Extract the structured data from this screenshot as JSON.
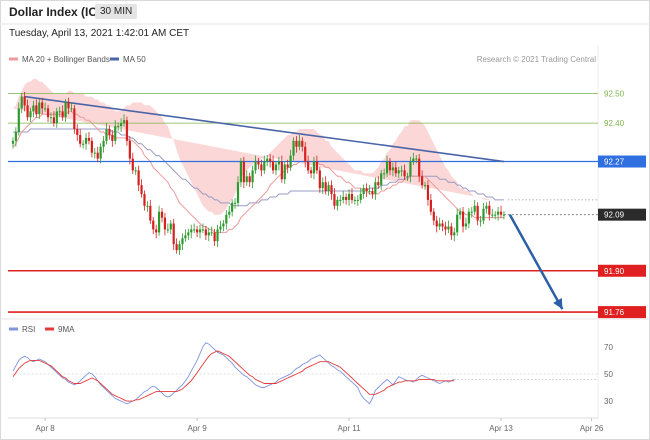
{
  "header": {
    "title": "Dollar Index (ICE)",
    "interval": "30 MIN",
    "datetime": "Tuesday, April 13, 2021 1:42:01 AM CET",
    "credit": "Research © 2021 Trading Central"
  },
  "colors": {
    "resistance": "#7bb34a",
    "pivot": "#2f6fe0",
    "support": "#e02020",
    "bands_fill": "#fbd7d7",
    "ma20": "#ee9a9a",
    "ma50": "#9a9ac4",
    "trendline": "#4a64a8",
    "candle_up": "#2e9a2e",
    "candle_down": "#d61f1f",
    "rsi": "#7f95dc",
    "rsi_ma": "#e23a3a"
  },
  "chart_data": [
    {
      "type": "candlestick",
      "legend": [
        {
          "name": "MA 20 + Bollinger Bands",
          "color": "#ee9a9a"
        },
        {
          "name": "MA 50",
          "color": "#4a64a8"
        }
      ],
      "ylim": [
        91.74,
        92.58
      ],
      "levels": [
        {
          "value": 92.5,
          "label": "92.50",
          "kind": "resistance"
        },
        {
          "value": 92.4,
          "label": "92.40",
          "kind": "resistance"
        },
        {
          "value": 92.27,
          "label": "92.27",
          "kind": "pivot"
        },
        {
          "value": 91.9,
          "label": "91.90",
          "kind": "support"
        },
        {
          "value": 91.76,
          "label": "91.76",
          "kind": "support"
        }
      ],
      "last_price": {
        "value": 92.09,
        "label": "92.09"
      },
      "x_ticks": [
        {
          "i": 11,
          "label": "Apr 8"
        },
        {
          "i": 63,
          "label": "Apr 9"
        },
        {
          "i": 115,
          "label": "Apr 11"
        },
        {
          "i": 167,
          "label": "Apr 13"
        },
        {
          "i": 198,
          "label": "Apr 26"
        }
      ],
      "n_slots": 200,
      "closes": [
        92.34,
        92.37,
        92.45,
        92.49,
        92.46,
        92.42,
        92.44,
        92.46,
        92.43,
        92.47,
        92.45,
        92.45,
        92.42,
        92.42,
        92.4,
        92.44,
        92.44,
        92.42,
        92.47,
        92.45,
        92.45,
        92.38,
        92.36,
        92.33,
        92.33,
        92.35,
        92.34,
        92.3,
        92.3,
        92.28,
        92.32,
        92.34,
        92.38,
        92.36,
        92.34,
        92.39,
        92.39,
        92.4,
        92.41,
        92.34,
        92.28,
        92.24,
        92.24,
        92.19,
        92.16,
        92.12,
        92.12,
        92.07,
        92.04,
        92.03,
        92.1,
        92.08,
        92.04,
        92.04,
        92.06,
        91.99,
        91.97,
        91.99,
        92.01,
        92.02,
        92.03,
        92.04,
        92.04,
        92.03,
        92.04,
        92.04,
        92.02,
        92.03,
        92.03,
        92.0,
        92.04,
        92.05,
        92.06,
        92.09,
        92.1,
        92.13,
        92.13,
        92.2,
        92.27,
        92.2,
        92.22,
        92.2,
        92.24,
        92.27,
        92.26,
        92.24,
        92.27,
        92.28,
        92.27,
        92.24,
        92.26,
        92.27,
        92.21,
        92.26,
        92.25,
        92.29,
        92.34,
        92.32,
        92.34,
        92.32,
        92.27,
        92.24,
        92.23,
        92.27,
        92.24,
        92.18,
        92.2,
        92.17,
        92.19,
        92.16,
        92.12,
        92.14,
        92.14,
        92.15,
        92.14,
        92.16,
        92.14,
        92.14,
        92.14,
        92.16,
        92.18,
        92.17,
        92.17,
        92.16,
        92.2,
        92.19,
        92.23,
        92.23,
        92.27,
        92.24,
        92.25,
        92.23,
        92.24,
        92.24,
        92.22,
        92.22,
        92.27,
        92.28,
        92.28,
        92.22,
        92.19,
        92.19,
        92.14,
        92.1,
        92.07,
        92.05,
        92.06,
        92.05,
        92.04,
        92.05,
        92.02,
        92.03,
        92.09,
        92.1,
        92.05,
        92.06,
        92.1,
        92.1,
        92.12,
        92.07,
        92.07,
        92.11,
        92.12,
        92.09,
        92.09,
        92.09,
        92.1,
        92.09,
        92.09
      ],
      "ma20": [
        92.32,
        92.33,
        92.35,
        92.37,
        92.38,
        92.39,
        92.4,
        92.41,
        92.42,
        92.42,
        92.43,
        92.43,
        92.43,
        92.43,
        92.43,
        92.43,
        92.43,
        92.43,
        92.43,
        92.44,
        92.44,
        92.43,
        92.43,
        92.42,
        92.42,
        92.41,
        92.41,
        92.4,
        92.39,
        92.38,
        92.37,
        92.37,
        92.36,
        92.36,
        92.36,
        92.35,
        92.35,
        92.35,
        92.35,
        92.35,
        92.34,
        92.34,
        92.33,
        92.32,
        92.31,
        92.29,
        92.28,
        92.27,
        92.25,
        92.24,
        92.23,
        92.22,
        92.21,
        92.2,
        92.18,
        92.17,
        92.15,
        92.13,
        92.12,
        92.11,
        92.1,
        92.09,
        92.08,
        92.07,
        92.06,
        92.05,
        92.05,
        92.04,
        92.04,
        92.03,
        92.03,
        92.03,
        92.03,
        92.03,
        92.04,
        92.04,
        92.05,
        92.06,
        92.08,
        92.09,
        92.1,
        92.11,
        92.12,
        92.13,
        92.14,
        92.15,
        92.16,
        92.17,
        92.19,
        92.2,
        92.21,
        92.22,
        92.23,
        92.24,
        92.25,
        92.25,
        92.26,
        92.26,
        92.27,
        92.27,
        92.27,
        92.27,
        92.27,
        92.27,
        92.27,
        92.26,
        92.26,
        92.25,
        92.25,
        92.24,
        92.23,
        92.22,
        92.22,
        92.21,
        92.2,
        92.2,
        92.19,
        92.18,
        92.18,
        92.18,
        92.17,
        92.17,
        92.16,
        92.16,
        92.16,
        92.16,
        92.17,
        92.17,
        92.18,
        92.18,
        92.19,
        92.19,
        92.2,
        92.2,
        92.21,
        92.21,
        92.22,
        92.22,
        92.22,
        92.22,
        92.22,
        92.22,
        92.21,
        92.2,
        92.19,
        92.18,
        92.17,
        92.16,
        92.15,
        92.14,
        92.13,
        92.12,
        92.11,
        92.1,
        92.1,
        92.09,
        92.09,
        92.09,
        92.08,
        92.08,
        92.08,
        92.08,
        92.08,
        92.08,
        92.08,
        92.08,
        92.08,
        92.08,
        92.08
      ],
      "ma50": [
        92.37,
        92.37,
        92.37,
        92.37,
        92.37,
        92.37,
        92.38,
        92.38,
        92.38,
        92.38,
        92.38,
        92.38,
        92.38,
        92.38,
        92.38,
        92.38,
        92.38,
        92.38,
        92.38,
        92.38,
        92.38,
        92.38,
        92.38,
        92.38,
        92.38,
        92.38,
        92.38,
        92.38,
        92.38,
        92.38,
        92.38,
        92.38,
        92.38,
        92.38,
        92.37,
        92.37,
        92.37,
        92.36,
        92.36,
        92.36,
        92.35,
        92.35,
        92.34,
        92.33,
        92.33,
        92.32,
        92.31,
        92.31,
        92.3,
        92.29,
        92.29,
        92.28,
        92.27,
        92.26,
        92.25,
        92.24,
        92.23,
        92.22,
        92.21,
        92.21,
        92.2,
        92.19,
        92.18,
        92.18,
        92.17,
        92.16,
        92.16,
        92.15,
        92.15,
        92.14,
        92.14,
        92.13,
        92.13,
        92.13,
        92.13,
        92.12,
        92.12,
        92.12,
        92.12,
        92.12,
        92.12,
        92.13,
        92.13,
        92.13,
        92.13,
        92.14,
        92.14,
        92.14,
        92.15,
        92.15,
        92.15,
        92.16,
        92.16,
        92.16,
        92.16,
        92.17,
        92.17,
        92.17,
        92.17,
        92.17,
        92.17,
        92.17,
        92.17,
        92.17,
        92.17,
        92.17,
        92.17,
        92.17,
        92.17,
        92.17,
        92.17,
        92.17,
        92.17,
        92.17,
        92.17,
        92.17,
        92.17,
        92.17,
        92.17,
        92.17,
        92.17,
        92.17,
        92.18,
        92.18,
        92.18,
        92.18,
        92.19,
        92.19,
        92.19,
        92.2,
        92.2,
        92.2,
        92.21,
        92.21,
        92.21,
        92.22,
        92.22,
        92.22,
        92.22,
        92.22,
        92.22,
        92.22,
        92.22,
        92.22,
        92.22,
        92.22,
        92.21,
        92.21,
        92.21,
        92.2,
        92.2,
        92.2,
        92.19,
        92.19,
        92.18,
        92.18,
        92.17,
        92.17,
        92.17,
        92.16,
        92.16,
        92.16,
        92.15,
        92.15,
        92.15,
        92.14,
        92.14,
        92.14,
        92.14
      ],
      "bb_width": [
        0.13,
        0.13,
        0.14,
        0.14,
        0.15,
        0.15,
        0.14,
        0.14,
        0.13,
        0.12,
        0.11,
        0.1,
        0.09,
        0.08,
        0.07,
        0.07,
        0.07,
        0.07,
        0.07,
        0.07,
        0.07,
        0.07,
        0.07,
        0.08,
        0.08,
        0.08,
        0.08,
        0.09,
        0.09,
        0.1,
        0.1,
        0.1,
        0.1,
        0.1,
        0.09,
        0.09,
        0.09,
        0.09,
        0.1,
        0.11,
        0.12,
        0.13,
        0.14,
        0.15,
        0.16,
        0.17,
        0.18,
        0.19,
        0.2,
        0.2,
        0.2,
        0.2,
        0.19,
        0.19,
        0.18,
        0.17,
        0.16,
        0.15,
        0.14,
        0.13,
        0.12,
        0.11,
        0.1,
        0.09,
        0.08,
        0.07,
        0.06,
        0.06,
        0.06,
        0.06,
        0.06,
        0.06,
        0.07,
        0.08,
        0.09,
        0.1,
        0.11,
        0.12,
        0.13,
        0.14,
        0.14,
        0.14,
        0.14,
        0.14,
        0.13,
        0.13,
        0.12,
        0.12,
        0.11,
        0.11,
        0.11,
        0.11,
        0.11,
        0.11,
        0.11,
        0.11,
        0.11,
        0.11,
        0.11,
        0.11,
        0.11,
        0.11,
        0.11,
        0.11,
        0.1,
        0.1,
        0.1,
        0.09,
        0.09,
        0.08,
        0.08,
        0.08,
        0.07,
        0.07,
        0.07,
        0.06,
        0.06,
        0.06,
        0.06,
        0.06,
        0.06,
        0.06,
        0.07,
        0.07,
        0.08,
        0.09,
        0.1,
        0.11,
        0.12,
        0.13,
        0.14,
        0.15,
        0.16,
        0.17,
        0.18,
        0.18,
        0.19,
        0.19,
        0.19,
        0.19,
        0.18,
        0.17,
        0.16,
        0.15,
        0.14,
        0.13,
        0.12,
        0.11,
        0.1,
        0.1,
        0.09,
        0.09,
        0.09,
        0.08,
        0.08,
        0.08,
        0.08,
        0.07,
        0.07,
        0.07,
        0.07,
        0.06,
        0.06,
        0.06,
        0.06
      ],
      "trendline": {
        "from": {
          "i": 4,
          "value": 92.49
        },
        "to": {
          "i": 168,
          "value": 92.27
        }
      },
      "projection": {
        "from": {
          "i": 170,
          "value": 92.09
        },
        "to": {
          "i": 188,
          "value": 91.77
        }
      }
    },
    {
      "type": "line",
      "legend": [
        {
          "name": "RSI",
          "color": "#7f95dc"
        },
        {
          "name": "9MA",
          "color": "#e23a3a"
        }
      ],
      "ylim": [
        22,
        75
      ],
      "y_ticks": [
        30,
        50,
        70
      ],
      "series": [
        {
          "name": "RSI",
          "values": [
            52,
            56,
            60,
            62,
            63,
            62,
            60,
            59,
            60,
            61,
            60,
            59,
            57,
            55,
            53,
            51,
            49,
            47,
            46,
            44,
            43,
            42,
            43,
            45,
            47,
            49,
            51,
            50,
            48,
            45,
            42,
            40,
            38,
            36,
            34,
            32,
            31,
            30,
            29,
            28,
            29,
            30,
            31,
            33,
            35,
            37,
            38,
            40,
            41,
            40,
            38,
            36,
            34,
            33,
            34,
            36,
            38,
            40,
            42,
            45,
            48,
            52,
            56,
            60,
            65,
            70,
            73,
            72,
            70,
            68,
            66,
            65,
            64,
            62,
            60,
            58,
            55,
            53,
            51,
            49,
            48,
            46,
            44,
            42,
            41,
            40,
            40,
            41,
            42,
            43,
            44,
            46,
            47,
            48,
            49,
            50,
            52,
            54,
            55,
            57,
            58,
            59,
            61,
            62,
            63,
            64,
            62,
            60,
            58,
            56,
            55,
            53,
            52,
            50,
            48,
            46,
            44,
            42,
            40,
            35,
            32,
            30,
            28,
            32,
            38,
            40,
            42,
            44,
            46,
            44,
            42,
            45,
            48,
            47,
            46,
            45,
            45,
            44,
            46,
            48,
            49,
            48,
            47,
            46,
            45,
            44,
            43,
            44,
            45,
            44,
            45,
            46
          ]
        },
        {
          "name": "9MA",
          "values": [
            48,
            51,
            54,
            56,
            58,
            59,
            60,
            60,
            60,
            60,
            59,
            58,
            57,
            56,
            54,
            52,
            50,
            48,
            47,
            45,
            44,
            43,
            43,
            43,
            44,
            45,
            46,
            47,
            46,
            45,
            43,
            41,
            39,
            37,
            35,
            34,
            33,
            32,
            31,
            30,
            30,
            30,
            31,
            31,
            32,
            33,
            34,
            35,
            36,
            37,
            37,
            37,
            37,
            37,
            37,
            37,
            37,
            38,
            39,
            41,
            43,
            45,
            48,
            51,
            54,
            57,
            60,
            63,
            65,
            66,
            67,
            66,
            65,
            64,
            63,
            61,
            59,
            57,
            55,
            53,
            51,
            49,
            48,
            46,
            45,
            44,
            43,
            43,
            43,
            43,
            43,
            44,
            45,
            46,
            47,
            48,
            49,
            50,
            51,
            52,
            54,
            55,
            56,
            57,
            58,
            59,
            59,
            59,
            59,
            58,
            57,
            56,
            55,
            53,
            51,
            49,
            47,
            45,
            43,
            41,
            39,
            37,
            35,
            35,
            35,
            36,
            37,
            38,
            40,
            41,
            42,
            43,
            44,
            44,
            45,
            45,
            45,
            45,
            45,
            46,
            46,
            46,
            46,
            46,
            46,
            45,
            45,
            45,
            45,
            45,
            45,
            45
          ]
        }
      ]
    }
  ]
}
